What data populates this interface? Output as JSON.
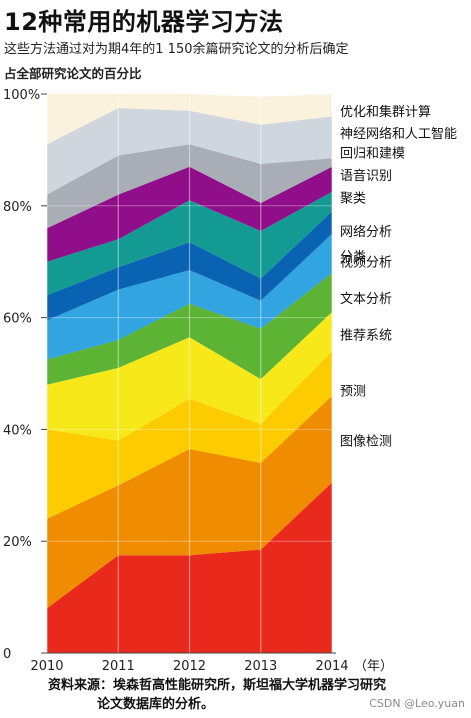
{
  "header": {
    "title": "12种常用的机器学习方法",
    "subtitle": "这些方法通过对为期4年的1 150余篇研究论文的分析后确定",
    "caption": "占全部研究论文的百分比"
  },
  "footer": {
    "source_line1": "资料来源：埃森哲高性能研究所，斯坦福大学机器学习研究",
    "source_line2": "论文数据库的分析。",
    "watermark": "CSDN @Leo.yuan"
  },
  "chart_data": {
    "type": "area",
    "stacked": true,
    "x": [
      "2010",
      "2011",
      "2012",
      "2013",
      "2014"
    ],
    "x_unit": "（年）",
    "ylim": [
      0,
      100
    ],
    "yticks": [
      "0",
      "20%",
      "40%",
      "60%",
      "80%",
      "100%"
    ],
    "grid": true,
    "legend_placement": "right",
    "series": [
      {
        "name": "分类",
        "color": "#e8291c",
        "values": [
          8,
          17.5,
          17.5,
          18.5,
          30.5
        ]
      },
      {
        "name": "预测",
        "color": "#f08c00",
        "values": [
          16,
          12.5,
          19,
          15.5,
          15.5
        ]
      },
      {
        "name": "图像检测",
        "color": "#fccc00",
        "values": [
          16,
          8,
          9,
          7,
          8
        ]
      },
      {
        "name": "推荐系统",
        "color": "#f7e81a",
        "values": [
          8,
          13,
          11,
          8,
          7
        ]
      },
      {
        "name": "文本分析",
        "color": "#5cb334",
        "values": [
          4.5,
          5,
          6,
          9,
          7
        ]
      },
      {
        "name": "视频分析",
        "color": "#32a4e0",
        "values": [
          7,
          9,
          6,
          5,
          7
        ]
      },
      {
        "name": "网络分析",
        "color": "#0a62b2",
        "values": [
          4.5,
          4,
          5,
          4,
          4
        ]
      },
      {
        "name": "聚类",
        "color": "#139a93",
        "values": [
          6,
          5,
          7.5,
          8.5,
          3.5
        ]
      },
      {
        "name": "语音识别",
        "color": "#900e8a",
        "values": [
          6,
          8,
          6,
          5,
          4.5
        ]
      },
      {
        "name": "回归和建模",
        "color": "#a8adb6",
        "values": [
          6,
          7,
          4,
          7,
          1.5
        ]
      },
      {
        "name": "神经网络和人工智能",
        "color": "#cfd6de",
        "values": [
          9,
          8.5,
          6,
          7,
          7.5
        ]
      },
      {
        "name": "优化和集群计算",
        "color": "#fbf2dd",
        "values": [
          9,
          2.5,
          3,
          5,
          4
        ]
      }
    ],
    "label_y": [
      71,
      47,
      38,
      57,
      63.5,
      70,
      75.5,
      81.5,
      85.5,
      89.5,
      93,
      97
    ]
  }
}
